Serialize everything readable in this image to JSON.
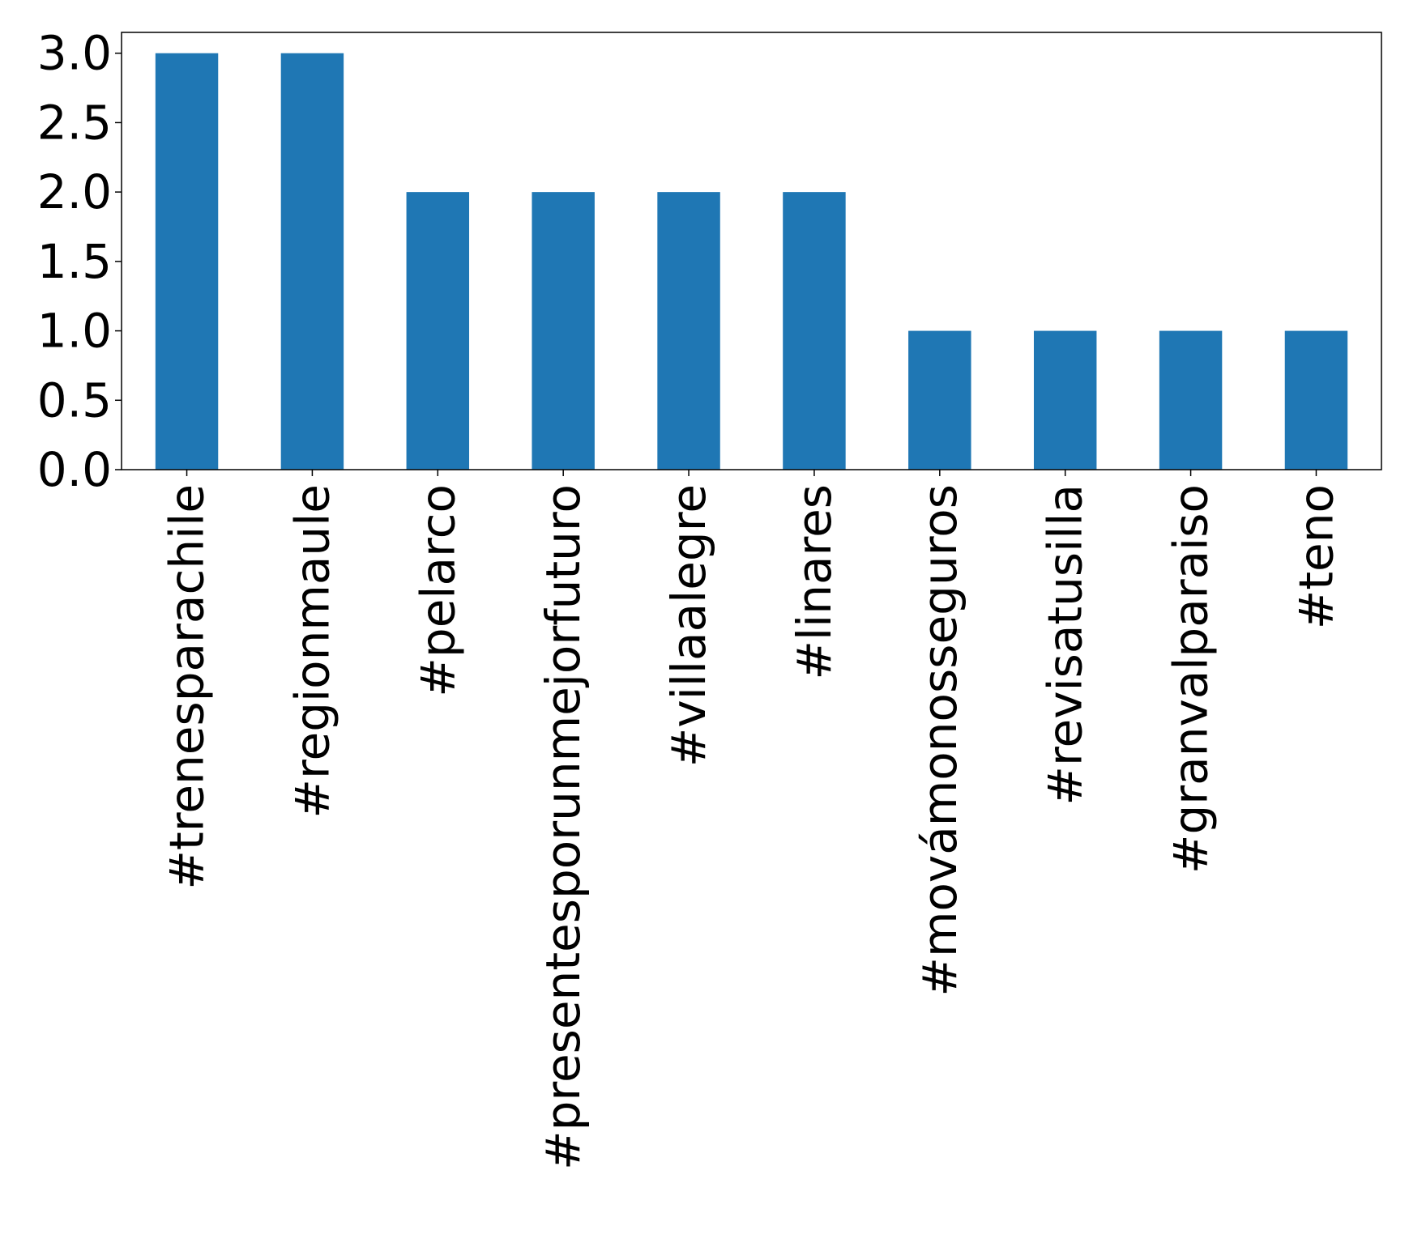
{
  "chart_data": {
    "type": "bar",
    "title": "",
    "xlabel": "",
    "ylabel": "",
    "categories": [
      "#trenesparachile",
      "#regionmaule",
      "#pelarco",
      "#presentesporunmejorfuturo",
      "#villaalegre",
      "#linares",
      "#movámonosseguros",
      "#revisatusilla",
      "#granvalparaiso",
      "#teno"
    ],
    "values": [
      3,
      3,
      2,
      2,
      2,
      2,
      1,
      1,
      1,
      1
    ],
    "ylim": [
      0,
      3.15
    ],
    "yticks": [
      "0.0",
      "0.5",
      "1.0",
      "1.5",
      "2.0",
      "2.5",
      "3.0"
    ],
    "grid": false,
    "legend": "none",
    "bar_color": "#1f77b4"
  }
}
